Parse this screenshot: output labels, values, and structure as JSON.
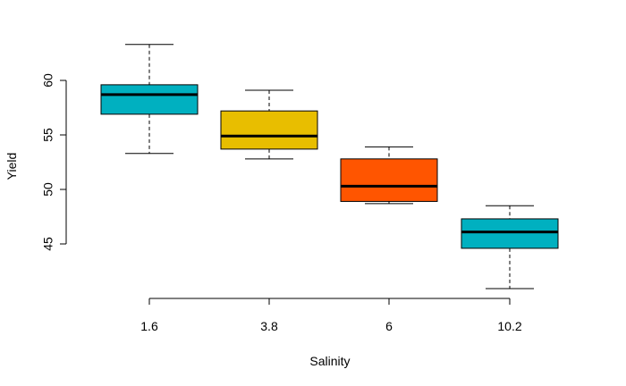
{
  "chart_data": {
    "type": "boxplot",
    "title": "",
    "xlabel": "Salinity",
    "ylabel": "Yield",
    "categories": [
      "1.6",
      "3.8",
      "6",
      "10.2"
    ],
    "y_ticks": [
      45,
      50,
      55,
      60
    ],
    "y_tick_labels": [
      "45",
      "50",
      "55",
      "60"
    ],
    "ylim": [
      40,
      63.5
    ],
    "grid": false,
    "legend": "none",
    "boxes": [
      {
        "category": "1.6",
        "min": 53.3,
        "q1": 56.9,
        "median": 58.7,
        "q3": 59.6,
        "max": 63.3,
        "color": "#00B0C0"
      },
      {
        "category": "3.8",
        "min": 52.8,
        "q1": 53.7,
        "median": 54.9,
        "q3": 57.2,
        "max": 59.1,
        "color": "#E8BE00"
      },
      {
        "category": "6",
        "min": 48.7,
        "q1": 48.9,
        "median": 50.3,
        "q3": 52.8,
        "max": 53.9,
        "color": "#FF5500"
      },
      {
        "category": "10.2",
        "min": 40.9,
        "q1": 44.6,
        "median": 46.1,
        "q3": 47.3,
        "max": 48.5,
        "color": "#00B0C0"
      }
    ]
  }
}
